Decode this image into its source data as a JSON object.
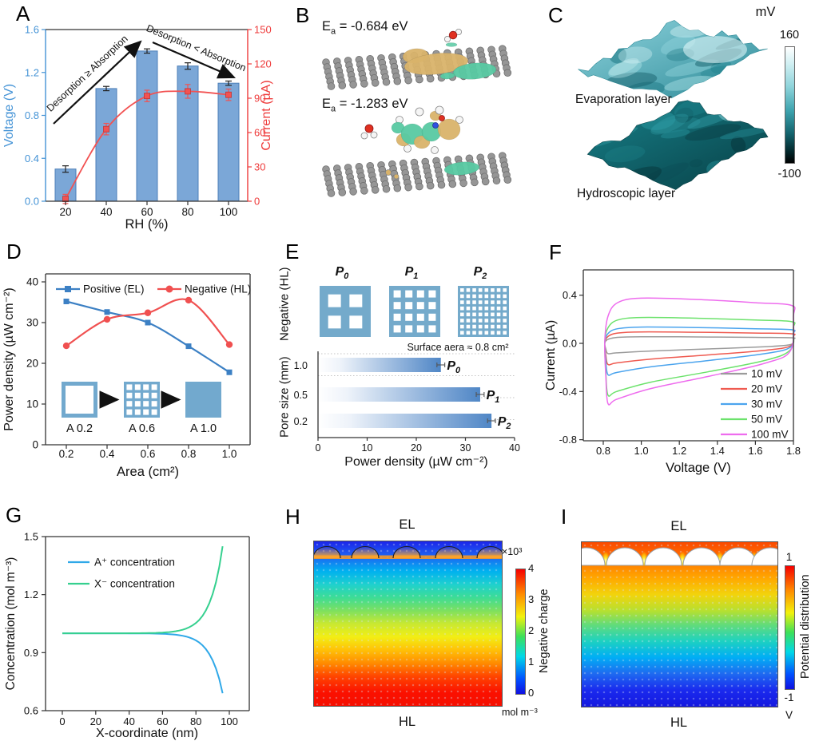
{
  "chart_data": [
    {
      "panel": "A",
      "type": "bar+line",
      "categories": [
        20,
        40,
        60,
        80,
        100
      ],
      "xlabel": "RH (%)",
      "y_left": {
        "label": "Voltage (V)",
        "color": "#4493D6",
        "ticks": [
          0.0,
          0.4,
          0.8,
          1.2,
          1.6
        ],
        "max": 1.6
      },
      "y_right": {
        "label": "Current (µA)",
        "color": "#EE3B3B",
        "ticks": [
          0,
          30,
          60,
          90,
          120,
          150
        ],
        "max": 150
      },
      "bars": {
        "name": "Voltage",
        "color": "#7BA7D7",
        "edge_color": "#4D7FB8",
        "values": [
          0.3,
          1.05,
          1.4,
          1.26,
          1.1
        ],
        "errors": [
          0.03,
          0.02,
          0.02,
          0.03,
          0.02
        ]
      },
      "line": {
        "name": "Current",
        "color": "#F25252",
        "values": [
          2,
          63,
          92,
          96,
          93
        ],
        "errors": [
          4,
          5,
          5,
          6,
          5
        ]
      },
      "annotations": [
        {
          "text": "Desorption ≥ Absorption",
          "rotation": -43
        },
        {
          "text": "Desorption < Absorption",
          "rotation": 22.5
        }
      ]
    },
    {
      "panel": "D",
      "type": "line",
      "x": [
        0.2,
        0.4,
        0.6,
        0.8,
        1.0
      ],
      "xlabel": "Area (cm²)",
      "ylabel": "Power density (µW cm⁻²)",
      "yticks": [
        0,
        10,
        20,
        30,
        40
      ],
      "ylim": [
        0,
        42
      ],
      "series": [
        {
          "name": "Positive (EL)",
          "color": "#3C80C4",
          "marker": "square",
          "values": [
            35.2,
            32.6,
            30.0,
            24.2,
            17.8
          ]
        },
        {
          "name": "Negative (HL)",
          "color": "#F05050",
          "marker": "circle",
          "values": [
            24.3,
            30.8,
            32.4,
            35.5,
            24.6
          ]
        }
      ],
      "inset": {
        "labels": [
          "A 0.2",
          "A 0.6",
          "A 1.0"
        ],
        "color": "#72A9CE"
      }
    },
    {
      "panel": "E",
      "type": "bar-horizontal",
      "xlabel": "Power density (µW cm⁻²)",
      "ylabel": "Pore size (mm)",
      "xticks": [
        0,
        10,
        20,
        30,
        40
      ],
      "xlim": [
        0,
        40
      ],
      "categories": [
        "1.0",
        "0.5",
        "0.2"
      ],
      "values": [
        25,
        33,
        35.3
      ],
      "errors": [
        0.8,
        0.8,
        0.8
      ],
      "bar_color": "#4F86C6"
    },
    {
      "panel": "F",
      "type": "cv-loops",
      "xlabel": "Voltage (V)",
      "ylabel": "Current (µA)",
      "xticks": [
        0.8,
        1.0,
        1.2,
        1.4,
        1.6,
        1.8
      ],
      "yticks": [
        0.4,
        0.0,
        -0.4,
        -0.8
      ],
      "series": [
        {
          "name": "10 mV",
          "color": "#9B9B9B",
          "top": 0.055,
          "bottom": -0.085
        },
        {
          "name": "20 mV",
          "color": "#EF5A50",
          "top": 0.095,
          "bottom": -0.175
        },
        {
          "name": "30 mV",
          "color": "#4BA4EE",
          "top": 0.135,
          "bottom": -0.26
        },
        {
          "name": "50 mV",
          "color": "#6CE26C",
          "top": 0.215,
          "bottom": -0.43
        },
        {
          "name": "100 mV",
          "color": "#EE6CEE",
          "top": 0.375,
          "bottom": -0.5
        }
      ]
    },
    {
      "panel": "G",
      "type": "line",
      "xlabel": "X-coordinate (nm)",
      "ylabel": "Concentration (mol m⁻³)",
      "xticks": [
        0,
        20,
        40,
        60,
        80,
        100
      ],
      "yticks": [
        0.6,
        0.9,
        1.2,
        1.5
      ],
      "x_end": 96,
      "series": [
        {
          "name": "A⁺ concentration",
          "color": "#2FA8E8",
          "baseline": 1.0,
          "end_value": 0.69
        },
        {
          "name": "X⁻ concentration",
          "color": "#35D08F",
          "baseline": 1.0,
          "end_value": 1.45
        }
      ]
    }
  ],
  "panels": {
    "A": {
      "label": "A"
    },
    "B": {
      "label": "B",
      "structures": [
        {
          "prefix": "E",
          "sub": "a",
          "rest": " = -0.684 eV"
        },
        {
          "prefix": "E",
          "sub": "a",
          "rest": " = -1.283 eV"
        }
      ],
      "colors": {
        "carbon": "#969696",
        "positive_iso": "#D9B36A",
        "negative_iso": "#57C9A2",
        "oxygen": "#E03020",
        "hydrogen": "#F5F5F5",
        "nitrogen": "#3050E0"
      }
    },
    "C": {
      "label": "C",
      "captions": [
        "Evaporation layer",
        "Hydroscopic layer"
      ],
      "colorbar": {
        "title": "mV",
        "max": "160",
        "min": "-100"
      }
    },
    "D": {
      "label": "D"
    },
    "E": {
      "label": "E",
      "side_label_top": "Negative (HL)",
      "note": "Surface aera ≈ 0.8 cm²",
      "patterns": [
        {
          "name": "P",
          "sub": "0",
          "grid": 2
        },
        {
          "name": "P",
          "sub": "1",
          "grid": 4
        },
        {
          "name": "P",
          "sub": "2",
          "grid": 8
        }
      ]
    },
    "F": {
      "label": "F"
    },
    "G": {
      "label": "G"
    },
    "H": {
      "label": "H",
      "top_label": "EL",
      "bottom_label": "HL",
      "colorbar": {
        "multiplier": "×10³",
        "ticks": [
          "4",
          "3",
          "2",
          "1",
          "0"
        ],
        "title": "Negative charge",
        "unit": "mol m⁻³"
      }
    },
    "I": {
      "label": "I",
      "top_label": "EL",
      "bottom_label": "HL",
      "colorbar": {
        "max": "1",
        "min": "-1",
        "title": "Potential distribution",
        "unit": "V"
      }
    }
  }
}
